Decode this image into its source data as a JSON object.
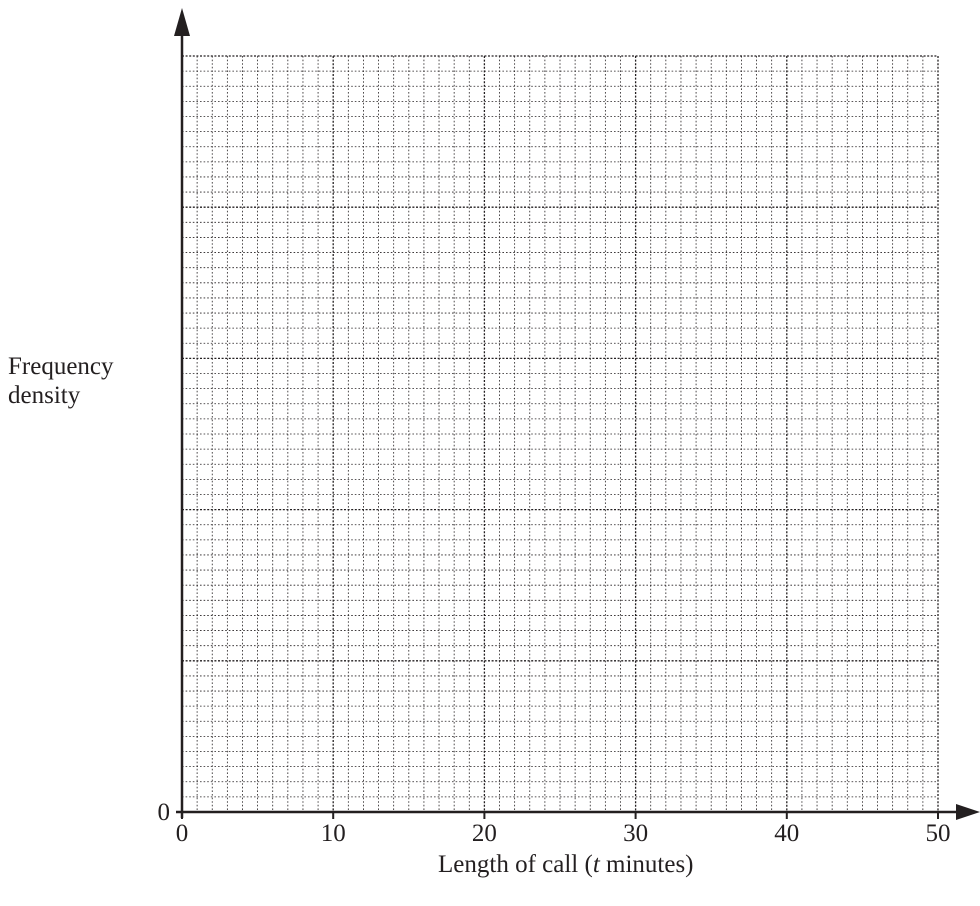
{
  "chart_data": {
    "type": "histogram",
    "title": "",
    "xlabel": "Length of call (t minutes)",
    "xlabel_parts": {
      "prefix": "Length of call (",
      "variable": "t",
      "suffix": " minutes)"
    },
    "ylabel_lines": [
      "Frequency",
      "density"
    ],
    "xlim": [
      0,
      50
    ],
    "x_ticks": [
      0,
      10,
      20,
      30,
      40,
      50
    ],
    "x_tick_labels": [
      "0",
      "10",
      "20",
      "30",
      "40",
      "50"
    ],
    "y_origin_label": "0",
    "y_ticks_labeled": false,
    "bins": [],
    "grid": {
      "visible": true,
      "major_x_step": 10,
      "minor_x_per_major": 10,
      "major_y_rows": 5,
      "minor_y_per_major": 10
    },
    "colors": {
      "axis": "#231f20",
      "grid": "#231f20"
    }
  }
}
